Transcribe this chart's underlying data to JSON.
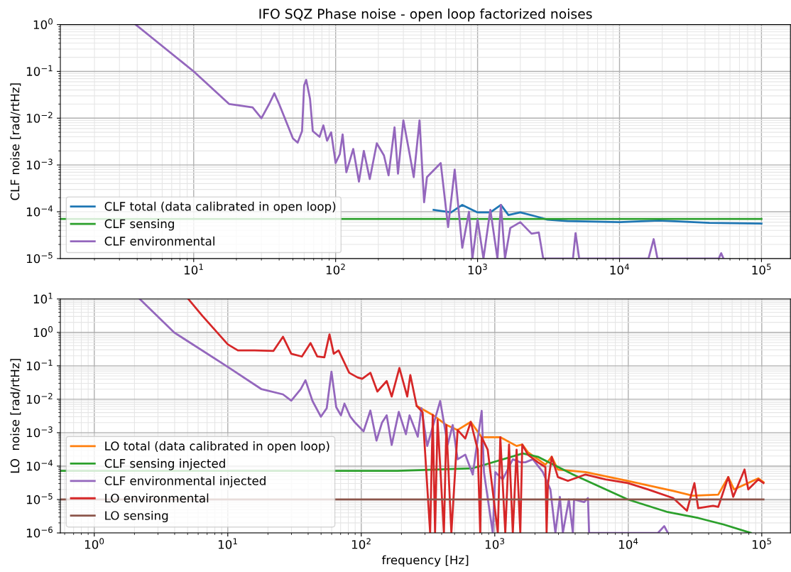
{
  "chart_data": [
    {
      "type": "line",
      "title": "IFO SQZ Phase noise - open loop factorized noises",
      "ylabel": "CLF noise [rad/rtHz]",
      "log": "xy",
      "grid": true,
      "legend": "bottom left",
      "marker": "none",
      "line_style": "solid",
      "xlim": [
        1.15,
        160000
      ],
      "xticks": [
        {
          "value": 10,
          "label": "10$^{1}$"
        },
        {
          "value": 100,
          "label": "10$^{2}$"
        },
        {
          "value": 1000,
          "label": "10$^{3}$"
        },
        {
          "value": 10000,
          "label": "10$^{4}$"
        },
        {
          "value": 100000,
          "label": "10$^{5}$"
        }
      ],
      "ylim": [
        1e-05,
        1
      ],
      "yticks": [
        {
          "value": 1e-05,
          "label": "10$^{−5}$"
        },
        {
          "value": 0.0001,
          "label": "10$^{−4}$"
        },
        {
          "value": 0.001,
          "label": "10$^{−3}$"
        },
        {
          "value": 0.01,
          "label": "10$^{−2}$"
        },
        {
          "value": 0.1,
          "label": "10$^{−1}$"
        },
        {
          "value": 1,
          "label": "10$^{0}$"
        }
      ],
      "series": [
        {
          "name": "CLF total (data calibrated in open loop)",
          "color": "#1f77b4",
          "x": [
            490,
            650,
            780,
            1000,
            1230,
            1460,
            1650,
            2000,
            2600,
            3100,
            4300,
            10000,
            19000,
            43000,
            100000
          ],
          "values": [
            0.00011,
            9.7e-05,
            0.00014,
            9.7e-05,
            9.7e-05,
            0.00014,
            8.5e-05,
            9.7e-05,
            7.9e-05,
            6.8e-05,
            6.3e-05,
            6e-05,
            6.5e-05,
            5.8e-05,
            5.6e-05
          ]
        },
        {
          "name": "CLF sensing",
          "color": "#2ca02c",
          "x": [
            1.15,
            100000
          ],
          "values": [
            7e-05,
            7e-05
          ]
        },
        {
          "name": "CLF environmental",
          "color": "#9467bd",
          "x": [
            3.9,
            10,
            17.8,
            26,
            30,
            34,
            37,
            40,
            50,
            54,
            58,
            60,
            62,
            66,
            69,
            77,
            82,
            87,
            93,
            100,
            107,
            112,
            119,
            133,
            146,
            158,
            174,
            195,
            219,
            236,
            260,
            275,
            300,
            330,
            355,
            390,
            420,
            440,
            550,
            620,
            690,
            780,
            870,
            920,
            1000,
            1100,
            1230,
            1380,
            1460,
            1560,
            1700,
            2000,
            2400,
            2700,
            2900,
            4700,
            4900,
            5200,
            16000,
            17400,
            18500,
            50000,
            52000,
            54000
          ],
          "values": [
            1,
            0.1,
            0.02,
            0.017,
            0.01,
            0.02,
            0.034,
            0.02,
            0.0037,
            0.003,
            0.0053,
            0.05,
            0.066,
            0.026,
            0.0053,
            0.004,
            0.007,
            0.0033,
            0.005,
            0.0011,
            0.0017,
            0.0045,
            0.0007,
            0.0022,
            0.00044,
            0.002,
            0.0005,
            0.0029,
            0.0016,
            0.0006,
            0.0064,
            0.00065,
            0.009,
            0.0019,
            0.00055,
            0.009,
            0.00016,
            0.00055,
            0.0011,
            4.7e-05,
            0.0008,
            1.7e-05,
            0.0001,
            1e-05,
            6.8e-05,
            1e-05,
            0.00011,
            1e-05,
            0.00014,
            1e-05,
            4.5e-05,
            6e-05,
            3.4e-05,
            3.6e-05,
            1e-05,
            1e-05,
            3.5e-05,
            1e-05,
            1e-05,
            2.6e-05,
            1e-05,
            1e-05,
            1.3e-05,
            1e-05
          ]
        }
      ]
    },
    {
      "type": "line",
      "xlabel": "frequency [Hz]",
      "ylabel": "LO  noise [rad/rtHz]",
      "log": "xy",
      "grid": true,
      "legend": "bottom left",
      "marker": "none",
      "line_style": "solid",
      "xlim": [
        0.557,
        164000
      ],
      "xticks": [
        {
          "value": 1,
          "label": "10$^{0}$"
        },
        {
          "value": 10,
          "label": "10$^{1}$"
        },
        {
          "value": 100,
          "label": "10$^{2}$"
        },
        {
          "value": 1000,
          "label": "10$^{3}$"
        },
        {
          "value": 10000,
          "label": "10$^{4}$"
        },
        {
          "value": 100000,
          "label": "10$^{5}$"
        }
      ],
      "ylim": [
        1e-06,
        10
      ],
      "yticks": [
        {
          "value": 1e-06,
          "label": "10$^{−6}$"
        },
        {
          "value": 1e-05,
          "label": "10$^{−5}$"
        },
        {
          "value": 0.0001,
          "label": "10$^{−4}$"
        },
        {
          "value": 0.001,
          "label": "10$^{−3}$"
        },
        {
          "value": 0.01,
          "label": "10$^{−2}$"
        },
        {
          "value": 0.1,
          "label": "10$^{−1}$"
        },
        {
          "value": 1,
          "label": "10$^{0}$"
        },
        {
          "value": 10,
          "label": "10$^{1}$"
        }
      ],
      "series": [
        {
          "name": "LO total (data calibrated in open loop)",
          "color": "#ff7f0e",
          "x": [
            260,
            343,
            434,
            527,
            661,
            798,
            1100,
            1457,
            1607,
            1770,
            2395,
            2670,
            2970,
            4780,
            9950,
            21700,
            30400,
            47200,
            56100,
            62000,
            94200,
            103000
          ],
          "values": [
            0.0063,
            0.0034,
            0.0017,
            0.0012,
            0.0021,
            0.00073,
            0.00073,
            0.0004,
            0.00044,
            0.00026,
            0.00011,
            0.00019,
            7.9e-05,
            6.6e-05,
            3.6e-05,
            1.8e-05,
            1.3e-05,
            1.4e-05,
            4.7e-05,
            2e-05,
            4.3e-05,
            3.3e-05
          ]
        },
        {
          "name": "CLF sensing injected",
          "color": "#2ca02c",
          "x": [
            0.557,
            187,
            684,
            1620,
            2100,
            3850,
            9950,
            19800,
            33400,
            51500,
            82700
          ],
          "values": [
            7.2e-05,
            7.2e-05,
            8.6e-05,
            0.00024,
            0.00019,
            5.6e-05,
            1e-05,
            4.2e-06,
            2.8e-06,
            1.8e-06,
            1e-06
          ]
        },
        {
          "name": "CLF environmental injected",
          "color": "#9467bd",
          "x": [
            2.19,
            3.96,
            10,
            17.9,
            25.9,
            29.9,
            35.2,
            38.2,
            43.1,
            49.8,
            55.1,
            59.8,
            64.9,
            70.4,
            74.8,
            82.8,
            89.9,
            104,
            117,
            130,
            143,
            155,
            169,
            191,
            216,
            230,
            265,
            282,
            312,
            390,
            444,
            484,
            527,
            601,
            684,
            798,
            830,
            966,
            1009,
            1148,
            1365,
            1553,
            1694,
            1929,
            2291,
            2610,
            2845,
            3076,
            3236,
            3590,
            3846,
            3926,
            4677,
            4990,
            5090,
            16700,
            18600,
            19800
          ],
          "values": [
            10,
            1,
            0.093,
            0.02,
            0.014,
            0.0091,
            0.02,
            0.037,
            0.0089,
            0.003,
            0.0054,
            0.067,
            0.0058,
            0.0033,
            0.0074,
            0.003,
            0.002,
            0.0011,
            0.0046,
            0.00058,
            0.002,
            0.0033,
            0.00043,
            0.0042,
            0.0009,
            0.0033,
            0.00076,
            0.0054,
            0.0004,
            0.0089,
            0.00044,
            0.0017,
            0.00016,
            0.00022,
            5.6e-05,
            0.0045,
            6.6e-05,
            1e-06,
            6.6e-05,
            4e-05,
            0.00016,
            0.00013,
            0.00013,
            0.00016,
            6.6e-05,
            2e-05,
            1e-06,
            1.2e-05,
            1e-06,
            1e-05,
            1e-06,
            1e-05,
            8.4e-06,
            1.1e-05,
            1e-06,
            1e-06,
            1.6e-06,
            1e-06
          ]
        },
        {
          "name": "LO environmental",
          "color": "#d62728",
          "x": [
            5.06,
            6.46,
            10,
            11.9,
            15.9,
            22,
            25.9,
            29.9,
            35.9,
            41.7,
            46.8,
            52.9,
            57.8,
            62.2,
            67.6,
            81.2,
            93.7,
            101.6,
            117,
            132,
            155,
            169,
            193,
            221,
            233,
            260,
            288,
            328,
            343,
            357,
            373,
            416,
            434,
            473,
            527,
            601,
            661,
            745,
            778,
            798,
            885,
            1054,
            1100,
            1199,
            1279,
            1365,
            1457,
            1553,
            1607,
            1770,
            2103,
            2395,
            2445,
            2500,
            2670,
            2970,
            3530,
            4780,
            6740,
            9950,
            14100,
            21700,
            27500,
            31300,
            33400,
            43200,
            47200,
            56100,
            61100,
            74300,
            79200,
            94200,
            103000
          ],
          "values": [
            10,
            3.1,
            0.44,
            0.29,
            0.29,
            0.28,
            0.74,
            0.23,
            0.19,
            0.48,
            0.19,
            0.18,
            0.87,
            0.23,
            0.29,
            0.062,
            0.045,
            0.041,
            0.062,
            0.017,
            0.035,
            0.012,
            0.086,
            0.012,
            0.053,
            0.0063,
            0.0041,
            1e-06,
            0.0034,
            1e-06,
            0.0024,
            1e-06,
            0.0017,
            1e-06,
            0.0012,
            0.00067,
            0.0021,
            0.00031,
            1e-06,
            0.00073,
            0.00031,
            1e-06,
            0.00073,
            1e-06,
            0.00044,
            1e-06,
            0.00031,
            1e-06,
            0.00044,
            0.00022,
            0.00013,
            9.3e-05,
            1e-06,
            2.8e-05,
            0.00019,
            4.7e-05,
            3.6e-05,
            5.6e-05,
            4e-05,
            3.1e-05,
            2e-05,
            1.1e-05,
            4.6e-06,
            3.1e-05,
            5.5e-06,
            6.5e-06,
            6e-06,
            4.7e-05,
            1.2e-05,
            7.9e-05,
            2e-05,
            4e-05,
            3.1e-05
          ]
        },
        {
          "name": "LO sensing",
          "color": "#8c564b",
          "x": [
            0.557,
            103000
          ],
          "values": [
            1e-05,
            1e-05
          ]
        }
      ]
    }
  ]
}
